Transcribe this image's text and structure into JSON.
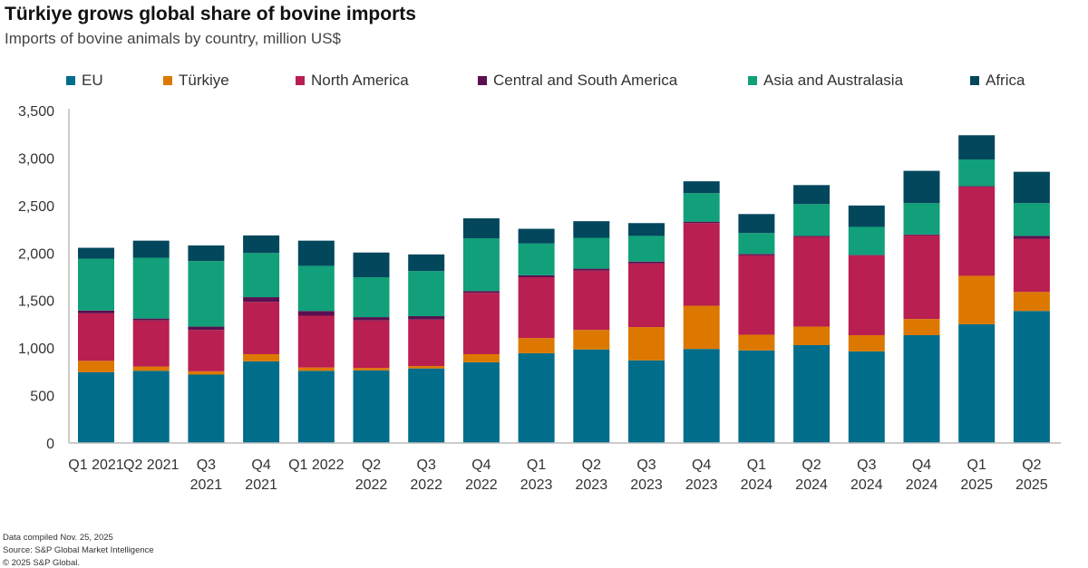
{
  "title": "Türkiye grows global share of bovine imports",
  "subtitle": "Imports of bovine animals by country, million US$",
  "footer": [
    "Data compiled Nov. 25, 2025",
    "Source: S&P Global Market Intelligence",
    "© 2025 S&P Global."
  ],
  "chart_data": {
    "type": "bar",
    "stacked": true,
    "title": "Türkiye grows global share of bovine imports",
    "subtitle": "Imports of bovine animals by country, million US$",
    "legend_position": "top",
    "grid": false,
    "ylim": [
      0,
      3500
    ],
    "yticks": [
      "0",
      "500",
      "1,000",
      "1,500",
      "2,000",
      "2,500",
      "3,000",
      "3,500"
    ],
    "ytick_values": [
      0,
      500,
      1000,
      1500,
      2000,
      2500,
      3000,
      3500
    ],
    "categories": [
      [
        "Q1 2021"
      ],
      [
        "Q2 2021"
      ],
      [
        "Q3",
        "2021"
      ],
      [
        "Q4",
        "2021"
      ],
      [
        "Q1 2022"
      ],
      [
        "Q2",
        "2022"
      ],
      [
        "Q3",
        "2022"
      ],
      [
        "Q4",
        "2022"
      ],
      [
        "Q1",
        "2023"
      ],
      [
        "Q2",
        "2023"
      ],
      [
        "Q3",
        "2023"
      ],
      [
        "Q4",
        "2023"
      ],
      [
        "Q1",
        "2024"
      ],
      [
        "Q2",
        "2024"
      ],
      [
        "Q3",
        "2024"
      ],
      [
        "Q4",
        "2024"
      ],
      [
        "Q1",
        "2025"
      ],
      [
        "Q2",
        "2025"
      ]
    ],
    "series": [
      {
        "name": "EU",
        "color": "#006d8a",
        "values": [
          745,
          760,
          720,
          860,
          760,
          765,
          785,
          850,
          945,
          985,
          870,
          990,
          975,
          1030,
          965,
          1135,
          1250,
          1390
        ]
      },
      {
        "name": "Türkiye",
        "color": "#dc7800",
        "values": [
          120,
          45,
          35,
          75,
          35,
          25,
          25,
          85,
          160,
          205,
          350,
          455,
          165,
          195,
          170,
          170,
          510,
          200
        ]
      },
      {
        "name": "North America",
        "color": "#b91f50",
        "values": [
          500,
          485,
          435,
          550,
          545,
          500,
          490,
          645,
          640,
          625,
          670,
          870,
          835,
          945,
          840,
          880,
          935,
          560
        ]
      },
      {
        "name": "Central and South America",
        "color": "#5a1050",
        "values": [
          30,
          20,
          35,
          50,
          50,
          35,
          35,
          20,
          20,
          20,
          20,
          15,
          15,
          10,
          5,
          10,
          10,
          30
        ]
      },
      {
        "name": "Asia and Australasia",
        "color": "#11a07a",
        "values": [
          545,
          640,
          690,
          465,
          475,
          420,
          475,
          555,
          335,
          325,
          270,
          300,
          220,
          335,
          295,
          330,
          280,
          345
        ]
      },
      {
        "name": "Africa",
        "color": "#02475c",
        "values": [
          115,
          180,
          165,
          185,
          265,
          260,
          175,
          210,
          155,
          175,
          135,
          125,
          200,
          200,
          225,
          340,
          255,
          330
        ]
      }
    ]
  }
}
